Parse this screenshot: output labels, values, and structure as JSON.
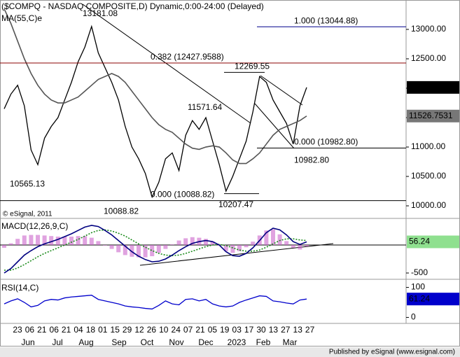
{
  "chart_data": [
    {
      "type": "line",
      "title": "($COMPQ - NASDAQ COMPOSITE,D) Dynamic,0:00-24:00 (Delayed)",
      "note": "© eSignal, 2011",
      "ylim": [
        9929,
        13500
      ],
      "yticks": [
        {
          "value": 10000,
          "label": "10000.00"
        },
        {
          "value": 10500,
          "label": "10500.00"
        },
        {
          "value": 11000,
          "label": "11000.00"
        },
        {
          "value": 11500,
          "label": "11500.00"
        },
        {
          "value": 12000,
          "label": "12000.00"
        },
        {
          "value": 12500,
          "label": "12500.00"
        },
        {
          "value": 13000,
          "label": "13000.00"
        }
      ],
      "series": [
        {
          "color": "#000000",
          "values": [
            11650,
            11900,
            12050,
            11700,
            10950,
            10700,
            11150,
            11350,
            11500,
            11800,
            12100,
            12450,
            12700,
            13050,
            12600,
            12350,
            12100,
            11800,
            11350,
            11000,
            10800,
            10550,
            10150,
            10400,
            10800,
            10900,
            10600,
            11200,
            11450,
            11300,
            11500,
            11100,
            10700,
            10250,
            10500,
            10800,
            11100,
            11600,
            12200,
            12100,
            11800,
            11600,
            11400,
            11050,
            11700,
            12013.4714
          ]
        },
        {
          "name": "MA(55,C)e",
          "color": "#555555",
          "values": [
            13350,
            13100,
            12800,
            12500,
            12250,
            12050,
            11900,
            11800,
            11750,
            11750,
            11800,
            11850,
            11950,
            12050,
            12150,
            12200,
            12250,
            12200,
            12100,
            11950,
            11800,
            11650,
            11500,
            11380,
            11300,
            11250,
            11150,
            11050,
            10980,
            10960,
            11000,
            11020,
            11000,
            10900,
            10780,
            10720,
            10720,
            10800,
            10900,
            11050,
            11200,
            11300,
            11350,
            11400,
            11450,
            11526.7531
          ]
        }
      ],
      "levels": [
        {
          "value": 13044.88,
          "label": "1.000 (13044.88)",
          "color": "#00008b"
        },
        {
          "value": 12427.9588,
          "label": "0.382 (12427.9588)",
          "color": "#8b0000"
        },
        {
          "value": 10982.8,
          "label": "0.000 (10982.80)",
          "color": "#000000"
        },
        {
          "value": 10088.82,
          "label": "0.000 (10088.82)",
          "color": "#000000"
        }
      ],
      "extremes": [
        13181.08,
        12269.55,
        11571.64,
        10565.13,
        10088.82,
        10207.47,
        {
          "value": 10982.8,
          "label": "10982.80"
        }
      ]
    },
    {
      "type": "line",
      "title": "MACD(12,26,9,C)",
      "ylim": [
        -600,
        450
      ],
      "yticks": [
        -500
      ],
      "series": [
        {
          "type": "bar",
          "color": "#cc66cc",
          "values": [
            -50,
            30,
            110,
            170,
            180,
            180,
            170,
            160,
            150,
            150,
            150,
            160,
            160,
            130,
            70,
            -10,
            -70,
            -130,
            -180,
            -210,
            -220,
            -220,
            -200,
            -140,
            -70,
            10,
            80,
            120,
            140,
            130,
            110,
            60,
            -10,
            -110,
            -140,
            -110,
            -40,
            60,
            170,
            260,
            280,
            190,
            70,
            -50,
            -80,
            -24
          ]
        },
        {
          "color": "#1a8a1a",
          "dash": true,
          "values": [
            -450,
            -450,
            -410,
            -350,
            -280,
            -210,
            -150,
            -100,
            -50,
            0,
            50,
            100,
            160,
            220,
            260,
            270,
            250,
            210,
            160,
            90,
            20,
            -40,
            -100,
            -150,
            -180,
            -190,
            -180,
            -150,
            -110,
            -70,
            -30,
            0,
            10,
            -10,
            -50,
            -90,
            -110,
            -110,
            -90,
            -40,
            20,
            80,
            110,
            110,
            90,
            80
          ]
        },
        {
          "color": "#000080",
          "values": [
            -500,
            -420,
            -300,
            -180,
            -100,
            -30,
            20,
            60,
            100,
            150,
            200,
            260,
            320,
            350,
            330,
            260,
            180,
            80,
            -20,
            -120,
            -200,
            -260,
            -300,
            -290,
            -250,
            -180,
            -100,
            -30,
            30,
            60,
            80,
            60,
            0,
            -120,
            -190,
            -200,
            -150,
            -50,
            80,
            220,
            300,
            270,
            180,
            60,
            10,
            56.24
          ]
        }
      ]
    },
    {
      "type": "line",
      "title": "RSI(14,C)",
      "ylim": [
        -20,
        120
      ],
      "yticks": [
        0,
        100
      ],
      "series": [
        {
          "color": "#0000cc",
          "values": [
            45,
            55,
            62,
            50,
            35,
            40,
            55,
            60,
            58,
            65,
            68,
            70,
            72,
            74,
            60,
            55,
            50,
            45,
            38,
            35,
            33,
            30,
            28,
            40,
            55,
            45,
            42,
            60,
            62,
            55,
            60,
            45,
            38,
            35,
            38,
            50,
            58,
            65,
            72,
            70,
            55,
            52,
            48,
            45,
            58,
            61.24
          ]
        }
      ]
    }
  ],
  "x_axis": {
    "dates": [
      "23",
      "06",
      "21",
      "06",
      "21",
      "04",
      "18",
      "01",
      "15",
      "29",
      "12",
      "26",
      "10",
      "24",
      "07",
      "21",
      "05",
      "19",
      "03",
      "17",
      "30",
      "13",
      "27",
      "13",
      "27"
    ],
    "months": [
      "Jun",
      "Jul",
      "Aug",
      "Sep",
      "Oct",
      "Nov",
      "Dec",
      "2023",
      "Feb",
      "Mar"
    ]
  },
  "footer": "Published by eSignal (www.esignal.com)"
}
